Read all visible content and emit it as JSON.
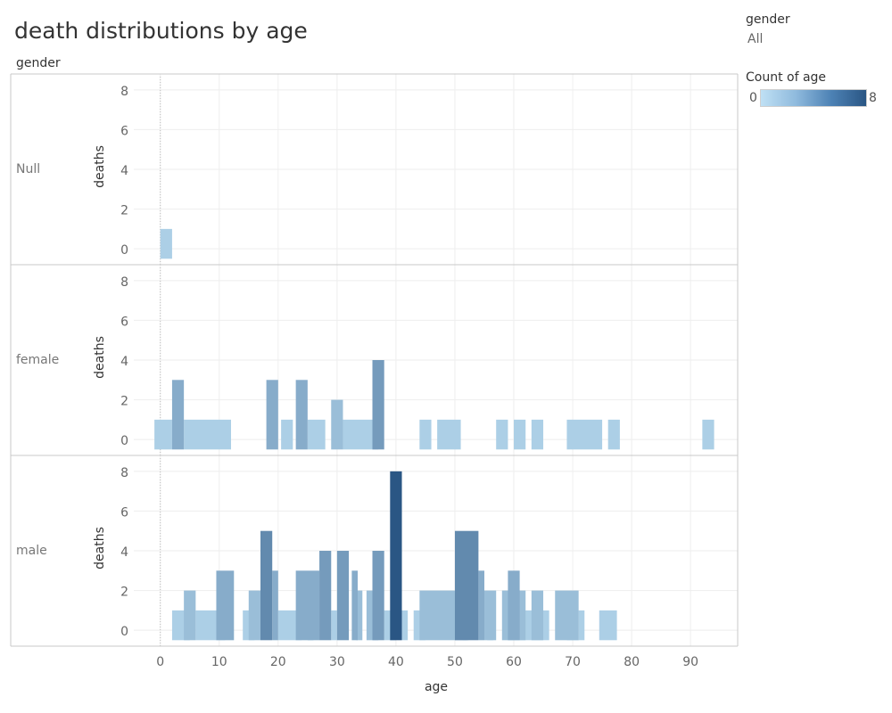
{
  "title": "death distributions by age",
  "row_header": "gender",
  "filter": {
    "title": "gender",
    "value": "All"
  },
  "legend": {
    "title": "Count of age",
    "min": "0",
    "max": "8",
    "colors": [
      "#bfe0f4",
      "#2a5684"
    ]
  },
  "chart_data": {
    "type": "bar",
    "title": "death distributions by age",
    "xlabel": "age",
    "ylabel": "deaths",
    "xlim": [
      -4.5,
      98
    ],
    "ylim": [
      -0.8,
      8.8
    ],
    "x_ticks": [
      0,
      10,
      20,
      30,
      40,
      50,
      60,
      70,
      80,
      90
    ],
    "y_ticks": [
      0,
      2,
      4,
      6,
      8
    ],
    "grid": true,
    "color_scale": {
      "field": "Count of age",
      "min": 0,
      "max": 8
    },
    "panels": [
      {
        "gender": "Null",
        "bars": [
          {
            "x": 1,
            "width": 2,
            "value": 1
          }
        ]
      },
      {
        "gender": "female",
        "bars": [
          {
            "x": 0.5,
            "width": 3,
            "value": 1
          },
          {
            "x": 3,
            "width": 2,
            "value": 3
          },
          {
            "x": 8,
            "width": 8,
            "value": 1
          },
          {
            "x": 19,
            "width": 2,
            "value": 3
          },
          {
            "x": 21.5,
            "width": 2,
            "value": 1
          },
          {
            "x": 24,
            "width": 2,
            "value": 3
          },
          {
            "x": 26.5,
            "width": 3,
            "value": 1
          },
          {
            "x": 30,
            "width": 2,
            "value": 2
          },
          {
            "x": 34,
            "width": 6,
            "value": 1
          },
          {
            "x": 37,
            "width": 2,
            "value": 4
          },
          {
            "x": 45,
            "width": 2,
            "value": 1
          },
          {
            "x": 49,
            "width": 4,
            "value": 1
          },
          {
            "x": 58,
            "width": 2,
            "value": 1
          },
          {
            "x": 61,
            "width": 2,
            "value": 1
          },
          {
            "x": 64,
            "width": 2,
            "value": 1
          },
          {
            "x": 72,
            "width": 6,
            "value": 1
          },
          {
            "x": 77,
            "width": 2,
            "value": 1
          },
          {
            "x": 93,
            "width": 2,
            "value": 1
          }
        ]
      },
      {
        "gender": "male",
        "bars": [
          {
            "x": 3.5,
            "width": 3,
            "value": 1
          },
          {
            "x": 5,
            "width": 2,
            "value": 2
          },
          {
            "x": 8.5,
            "width": 5,
            "value": 1
          },
          {
            "x": 11,
            "width": 3,
            "value": 3
          },
          {
            "x": 15,
            "width": 2,
            "value": 1
          },
          {
            "x": 16,
            "width": 2,
            "value": 2
          },
          {
            "x": 18,
            "width": 2,
            "value": 5
          },
          {
            "x": 19.5,
            "width": 1,
            "value": 3
          },
          {
            "x": 22,
            "width": 4,
            "value": 1
          },
          {
            "x": 25,
            "width": 4,
            "value": 3
          },
          {
            "x": 25.5,
            "width": 1,
            "value": 2
          },
          {
            "x": 28,
            "width": 2,
            "value": 4
          },
          {
            "x": 29.5,
            "width": 1,
            "value": 1
          },
          {
            "x": 31,
            "width": 2,
            "value": 4
          },
          {
            "x": 33,
            "width": 1,
            "value": 3
          },
          {
            "x": 33.8,
            "width": 1,
            "value": 2
          },
          {
            "x": 36,
            "width": 2,
            "value": 2
          },
          {
            "x": 37,
            "width": 2,
            "value": 4
          },
          {
            "x": 39,
            "width": 2,
            "value": 1
          },
          {
            "x": 40,
            "width": 2,
            "value": 8
          },
          {
            "x": 41.5,
            "width": 1,
            "value": 1
          },
          {
            "x": 44,
            "width": 2,
            "value": 1
          },
          {
            "x": 48,
            "width": 8,
            "value": 2
          },
          {
            "x": 52,
            "width": 4,
            "value": 5
          },
          {
            "x": 51.8,
            "width": 1,
            "value": 1
          },
          {
            "x": 54.5,
            "width": 1,
            "value": 3
          },
          {
            "x": 56,
            "width": 2,
            "value": 2
          },
          {
            "x": 56,
            "width": 1,
            "value": 1
          },
          {
            "x": 59,
            "width": 2,
            "value": 2
          },
          {
            "x": 60,
            "width": 2,
            "value": 3
          },
          {
            "x": 61,
            "width": 2,
            "value": 2
          },
          {
            "x": 62.5,
            "width": 3,
            "value": 1
          },
          {
            "x": 64,
            "width": 2,
            "value": 2
          },
          {
            "x": 65,
            "width": 2,
            "value": 1
          },
          {
            "x": 69,
            "width": 4,
            "value": 2
          },
          {
            "x": 70,
            "width": 2,
            "value": 1
          },
          {
            "x": 71.5,
            "width": 1,
            "value": 1
          },
          {
            "x": 76,
            "width": 3,
            "value": 1
          }
        ]
      }
    ]
  }
}
